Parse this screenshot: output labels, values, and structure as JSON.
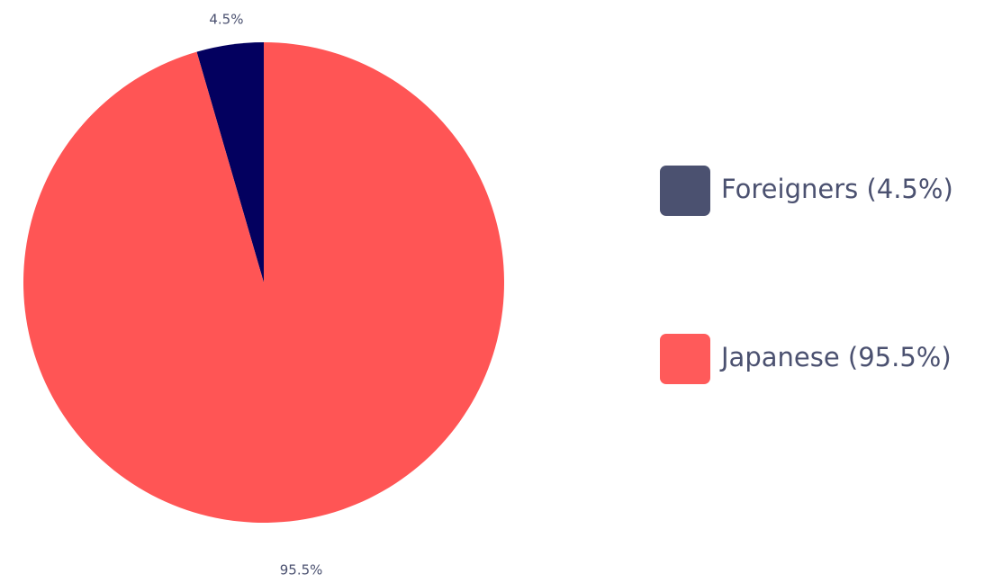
{
  "chart_data": {
    "type": "pie",
    "categories": [
      "Foreigners (4.5%)",
      "Japanese (95.5%)"
    ],
    "values": [
      4.5,
      95.5
    ],
    "value_labels": [
      "4.5%",
      "95.5%"
    ],
    "colors": [
      "#03005f",
      "#ff5555"
    ],
    "legend_colors": [
      "#4b5170",
      "#ff5a5a"
    ]
  }
}
